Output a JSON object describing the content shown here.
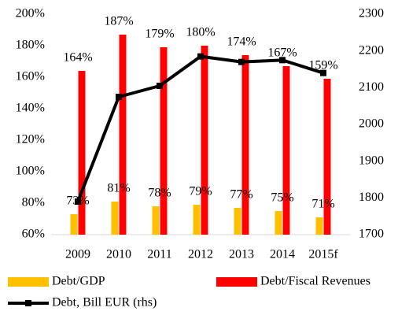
{
  "chart_data": {
    "type": "bar",
    "categories": [
      "2009",
      "2010",
      "2011",
      "2012",
      "2013",
      "2014",
      "2015f"
    ],
    "series": [
      {
        "name": "Debt/GDP",
        "type": "bar",
        "color": "#ffc000",
        "values": [
          73,
          81,
          78,
          79,
          77,
          75,
          71
        ],
        "value_labels": [
          "73%",
          "81%",
          "78%",
          "79%",
          "77%",
          "75%",
          "71%"
        ]
      },
      {
        "name": "Debt/Fiscal Revenues",
        "type": "bar",
        "color": "#ff0000",
        "values": [
          164,
          187,
          179,
          180,
          174,
          167,
          159
        ],
        "value_labels": [
          "164%",
          "187%",
          "179%",
          "180%",
          "174%",
          "167%",
          "159%"
        ]
      },
      {
        "name": "Debt, Bill EUR (rhs)",
        "type": "line",
        "axis": "y2",
        "color": "#000000",
        "values": [
          1790,
          2075,
          2105,
          2185,
          2170,
          2175,
          2140
        ]
      }
    ],
    "ylim": [
      60,
      200
    ],
    "yticks": [
      {
        "value": 60,
        "label": "60%"
      },
      {
        "value": 80,
        "label": "80%"
      },
      {
        "value": 100,
        "label": "100%"
      },
      {
        "value": 120,
        "label": "120%"
      },
      {
        "value": 140,
        "label": "140%"
      },
      {
        "value": 160,
        "label": "160%"
      },
      {
        "value": 180,
        "label": "180%"
      },
      {
        "value": 200,
        "label": "200%"
      }
    ],
    "y2lim": [
      1700,
      2300
    ],
    "y2ticks": [
      1700,
      1800,
      1900,
      2000,
      2100,
      2200,
      2300
    ],
    "grid": false,
    "legend": "bottom"
  }
}
